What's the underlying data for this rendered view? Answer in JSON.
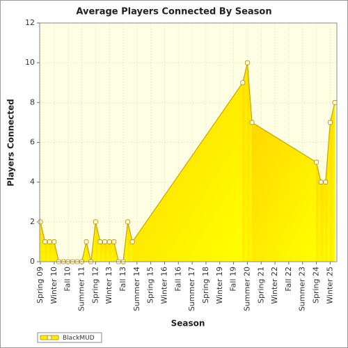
{
  "chart_data": {
    "type": "area",
    "title": "Average Players Connected By Season",
    "x_label": "Season",
    "y_label": "Players Connected",
    "categories": [
      "Spring 09",
      null,
      null,
      "Winter 10",
      null,
      null,
      "Fall 10",
      null,
      null,
      "Summer 11",
      null,
      null,
      "Spring 12",
      null,
      null,
      "Winter 13",
      null,
      null,
      "Fall 13",
      null,
      null,
      "Summer 14",
      null,
      null,
      "Spring 15",
      null,
      null,
      "Winter 16",
      null,
      null,
      "Fall 16",
      null,
      null,
      "Summer 17",
      null,
      null,
      "Spring 18",
      null,
      null,
      "Winter 19",
      null,
      null,
      "Fall 19",
      null,
      null,
      "Summer 20",
      null,
      null,
      "Spring 21",
      null,
      null,
      "Winter 22",
      null,
      null,
      "Fall 22",
      null,
      null,
      "Summer 23",
      null,
      null,
      "Spring 24",
      null,
      null,
      "Winter 25",
      null
    ],
    "series": [
      {
        "name": "BlackMUD",
        "color": "#ffee00",
        "values": [
          2,
          1,
          1,
          1,
          0,
          0,
          0,
          0,
          0,
          0,
          1,
          0,
          2,
          1,
          1,
          1,
          1,
          0,
          0,
          2,
          1,
          null,
          null,
          null,
          null,
          null,
          null,
          null,
          null,
          null,
          null,
          null,
          null,
          null,
          null,
          null,
          null,
          null,
          null,
          null,
          null,
          null,
          null,
          null,
          9,
          10,
          7,
          null,
          null,
          null,
          null,
          null,
          null,
          null,
          null,
          null,
          null,
          null,
          null,
          null,
          5,
          4,
          4,
          7,
          8
        ]
      }
    ],
    "ylim": [
      0,
      12
    ],
    "yticks": [
      0,
      2,
      4,
      6,
      8,
      10,
      12
    ],
    "grid": true
  }
}
